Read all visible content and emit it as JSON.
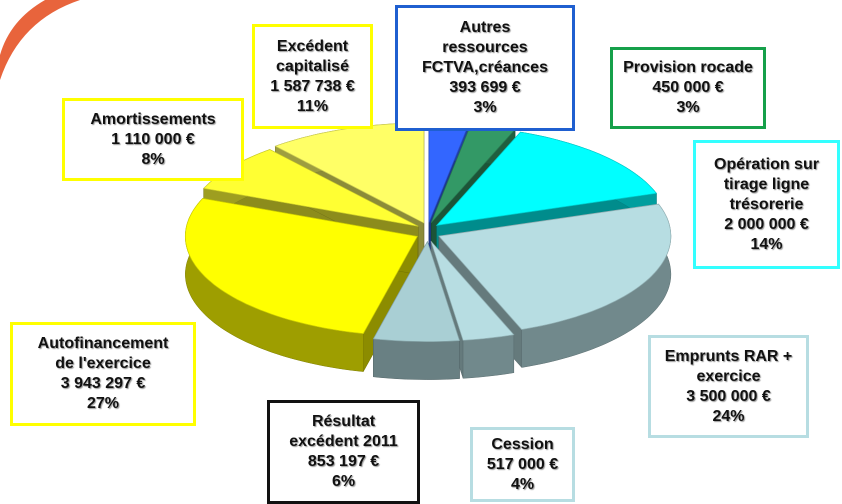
{
  "chart_data": {
    "type": "pie3d",
    "categories": [
      "Autres\nressources\nFCTVA,créances",
      "Provision rocade",
      "Opération sur\ntirage ligne\ntrésorerie",
      "Emprunts RAR +\nexercice",
      "Cession",
      "Résultat\nexcédent 2011",
      "Autofinancement\nde l'exercice",
      "Amortissements",
      "Excédent\ncapitalisé"
    ],
    "values": [
      393699,
      450000,
      2000000,
      3500000,
      517000,
      853197,
      3943297,
      1110000,
      1587738
    ],
    "value_labels": [
      "393 699 €",
      "450 000 €",
      "2 000 000 €",
      "3 500 000 €",
      "517 000 €",
      "853 197 €",
      "3 943 297 €",
      "1 110 000 €",
      "1 587 738 €"
    ],
    "percents": [
      3,
      3,
      14,
      24,
      4,
      6,
      27,
      8,
      11
    ],
    "percent_labels": [
      "3%",
      "3%",
      "14%",
      "24%",
      "4%",
      "6%",
      "27%",
      "8%",
      "11%"
    ],
    "colors": [
      "#3366ff",
      "#339966",
      "#00ffff",
      "#b7dde2",
      "#b7dde2",
      "#a9cfd4",
      "#ffff00",
      "#ffff33",
      "#ffff66"
    ],
    "label_border_colors": [
      "#1f5fd0",
      "#16a04a",
      "#33ffff",
      "#b7dde2",
      "#b7dde2",
      "#111111",
      "#ffff00",
      "#ffff00",
      "#ffff00"
    ]
  }
}
